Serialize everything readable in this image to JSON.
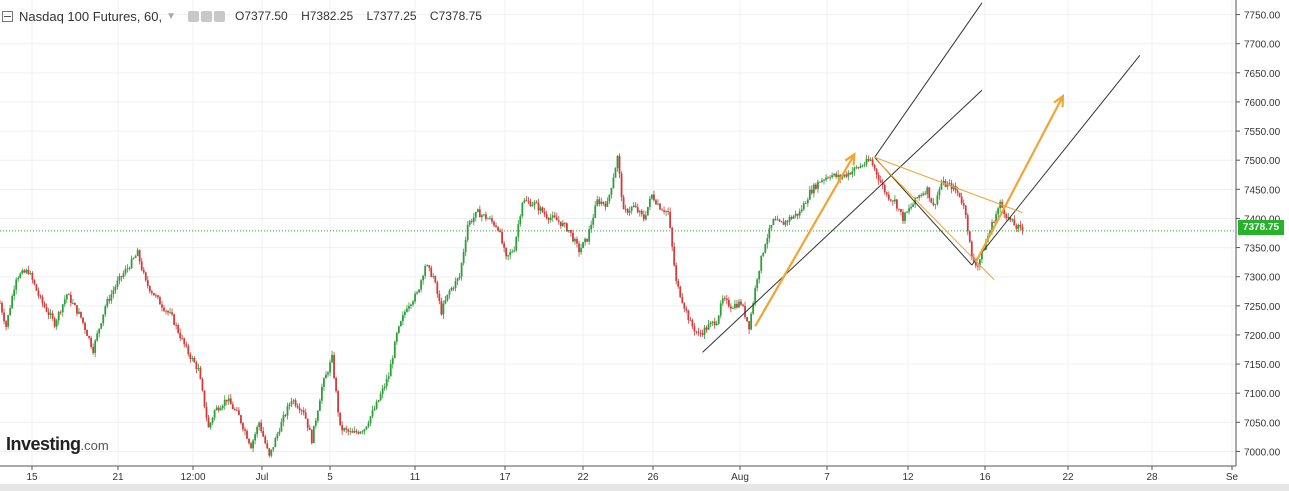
{
  "header": {
    "title": "Nasdaq 100 Futures, 60,",
    "ohlc": [
      {
        "k": "O",
        "v": "7377.50"
      },
      {
        "k": "H",
        "v": "7382.25"
      },
      {
        "k": "L",
        "v": "7377.25"
      },
      {
        "k": "C",
        "v": "7378.75"
      }
    ]
  },
  "logo": {
    "text": "Investing",
    "suffix": ".com"
  },
  "last_price": "7378.75",
  "colors": {
    "up": "#2e9e3a",
    "down": "#d23b3b",
    "arrow": "#f0a532",
    "channel": "#333333",
    "price_line": "#27b327"
  },
  "chart_data": {
    "type": "candlestick",
    "title": "Nasdaq 100 Futures, 60,",
    "xlabel": "",
    "ylabel": "",
    "ylim": [
      6975,
      7775
    ],
    "y_ticks": [
      7000,
      7050,
      7100,
      7150,
      7200,
      7250,
      7300,
      7350,
      7400,
      7450,
      7500,
      7550,
      7600,
      7650,
      7700,
      7750
    ],
    "x_tick_labels": [
      "15",
      "21",
      "12:00",
      "Jul",
      "5",
      "11",
      "17",
      "22",
      "26",
      "Aug",
      "7",
      "12",
      "16",
      "22",
      "28",
      "Se"
    ],
    "grid": true,
    "price_path": [
      [
        0,
        7255
      ],
      [
        3,
        7215
      ],
      [
        8,
        7300
      ],
      [
        14,
        7310
      ],
      [
        20,
        7260
      ],
      [
        27,
        7220
      ],
      [
        33,
        7270
      ],
      [
        40,
        7230
      ],
      [
        46,
        7175
      ],
      [
        52,
        7250
      ],
      [
        58,
        7290
      ],
      [
        64,
        7320
      ],
      [
        68,
        7340
      ],
      [
        72,
        7290
      ],
      [
        78,
        7260
      ],
      [
        85,
        7230
      ],
      [
        92,
        7175
      ],
      [
        98,
        7140
      ],
      [
        103,
        7040
      ],
      [
        106,
        7070
      ],
      [
        112,
        7090
      ],
      [
        118,
        7060
      ],
      [
        124,
        7010
      ],
      [
        128,
        7050
      ],
      [
        133,
        6990
      ],
      [
        138,
        7040
      ],
      [
        144,
        7090
      ],
      [
        150,
        7070
      ],
      [
        154,
        7020
      ],
      [
        159,
        7110
      ],
      [
        164,
        7160
      ],
      [
        168,
        7040
      ],
      [
        174,
        7030
      ],
      [
        180,
        7040
      ],
      [
        186,
        7080
      ],
      [
        192,
        7130
      ],
      [
        196,
        7200
      ],
      [
        201,
        7250
      ],
      [
        206,
        7270
      ],
      [
        210,
        7320
      ],
      [
        214,
        7300
      ],
      [
        218,
        7240
      ],
      [
        222,
        7275
      ],
      [
        227,
        7300
      ],
      [
        231,
        7390
      ],
      [
        236,
        7410
      ],
      [
        241,
        7400
      ],
      [
        246,
        7385
      ],
      [
        250,
        7330
      ],
      [
        254,
        7350
      ],
      [
        258,
        7430
      ],
      [
        264,
        7425
      ],
      [
        270,
        7405
      ],
      [
        276,
        7395
      ],
      [
        281,
        7380
      ],
      [
        286,
        7345
      ],
      [
        290,
        7365
      ],
      [
        295,
        7430
      ],
      [
        300,
        7425
      ],
      [
        305,
        7505
      ],
      [
        308,
        7410
      ],
      [
        313,
        7420
      ],
      [
        318,
        7400
      ],
      [
        322,
        7440
      ],
      [
        326,
        7420
      ],
      [
        330,
        7410
      ],
      [
        334,
        7290
      ],
      [
        338,
        7250
      ],
      [
        341,
        7220
      ],
      [
        345,
        7200
      ],
      [
        350,
        7215
      ],
      [
        354,
        7225
      ],
      [
        357,
        7260
      ],
      [
        361,
        7250
      ],
      [
        366,
        7255
      ],
      [
        370,
        7215
      ],
      [
        374,
        7300
      ],
      [
        378,
        7360
      ],
      [
        382,
        7395
      ],
      [
        386,
        7390
      ],
      [
        390,
        7400
      ],
      [
        395,
        7410
      ],
      [
        400,
        7445
      ],
      [
        405,
        7465
      ],
      [
        410,
        7475
      ],
      [
        415,
        7470
      ],
      [
        420,
        7480
      ],
      [
        425,
        7490
      ],
      [
        430,
        7500
      ],
      [
        434,
        7470
      ],
      [
        438,
        7440
      ],
      [
        442,
        7430
      ],
      [
        446,
        7400
      ],
      [
        450,
        7420
      ],
      [
        454,
        7440
      ],
      [
        458,
        7450
      ],
      [
        461,
        7420
      ],
      [
        465,
        7460
      ],
      [
        470,
        7455
      ],
      [
        474,
        7440
      ],
      [
        477,
        7410
      ],
      [
        480,
        7330
      ],
      [
        483,
        7320
      ],
      [
        487,
        7360
      ],
      [
        490,
        7390
      ],
      [
        494,
        7425
      ],
      [
        498,
        7400
      ],
      [
        502,
        7385
      ],
      [
        505,
        7380
      ]
    ],
    "channel_lines": [
      [
        [
          347,
          7170
        ],
        [
          485,
          7620
        ]
      ],
      [
        [
          432,
          7505
        ],
        [
          485,
          7770
        ]
      ],
      [
        [
          480,
          7320
        ],
        [
          563,
          7680
        ]
      ]
    ],
    "annotations": [
      "upward arrows",
      "descending wedge"
    ]
  }
}
